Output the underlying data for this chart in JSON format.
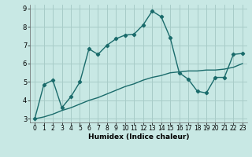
{
  "title": "",
  "xlabel": "Humidex (Indice chaleur)",
  "ylabel": "",
  "background_color": "#c8e8e4",
  "grid_color": "#a8ccc8",
  "line_color": "#1a6b6b",
  "xlim": [
    -0.5,
    23.5
  ],
  "ylim": [
    2.8,
    9.2
  ],
  "x_ticks": [
    0,
    1,
    2,
    3,
    4,
    5,
    6,
    7,
    8,
    9,
    10,
    11,
    12,
    13,
    14,
    15,
    16,
    17,
    18,
    19,
    20,
    21,
    22,
    23
  ],
  "y_ticks": [
    3,
    4,
    5,
    6,
    7,
    8,
    9
  ],
  "line1_x": [
    0,
    1,
    2,
    3,
    4,
    5,
    6,
    7,
    8,
    9,
    10,
    11,
    12,
    13,
    14,
    15,
    16,
    17,
    18,
    19,
    20,
    21,
    22,
    23
  ],
  "line1_y": [
    3.0,
    4.85,
    5.1,
    3.6,
    4.2,
    5.0,
    6.8,
    6.5,
    7.0,
    7.35,
    7.55,
    7.6,
    8.1,
    8.85,
    8.55,
    7.4,
    5.5,
    5.15,
    4.5,
    4.4,
    5.25,
    5.25,
    6.5,
    6.55
  ],
  "line2_x": [
    0,
    1,
    2,
    3,
    4,
    5,
    6,
    7,
    8,
    9,
    10,
    11,
    12,
    13,
    14,
    15,
    16,
    17,
    18,
    19,
    20,
    21,
    22,
    23
  ],
  "line2_y": [
    3.0,
    3.1,
    3.25,
    3.45,
    3.6,
    3.8,
    4.0,
    4.15,
    4.35,
    4.55,
    4.75,
    4.9,
    5.1,
    5.25,
    5.35,
    5.5,
    5.55,
    5.6,
    5.6,
    5.65,
    5.65,
    5.7,
    5.8,
    6.0
  ],
  "marker": "D",
  "marker_size": 2.2,
  "line_width": 1.0,
  "tick_fontsize": 5.5,
  "xlabel_fontsize": 6.5
}
